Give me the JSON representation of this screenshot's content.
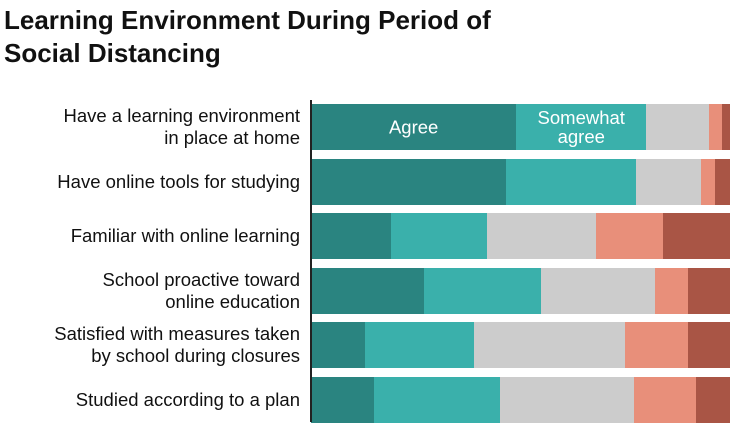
{
  "chart_data": {
    "type": "stacked_bar_horizontal",
    "title": "Learning Environment During Period of\nSocial Distancing",
    "categories": [
      "Have a learning environment\nin place at home",
      "Have online tools for studying",
      "Familiar with online learning",
      "School proactive toward\nonline education",
      "Satisfied with measures taken\nby school during closures",
      "Studied according to a plan"
    ],
    "xlim": [
      0,
      100
    ],
    "series": [
      {
        "name": "Agree",
        "color": "#2a8480",
        "values": [
          49,
          46.5,
          19,
          27,
          13,
          15
        ]
      },
      {
        "name": "Somewhat\nagree",
        "color": "#3ab0ab",
        "values": [
          31,
          31,
          23,
          28,
          26,
          30
        ]
      },
      {
        "color": "#cccccc",
        "values": [
          15,
          15.5,
          26,
          27,
          36,
          32
        ]
      },
      {
        "color": "#e88f7a",
        "values": [
          3,
          3.5,
          16,
          8,
          15,
          15
        ]
      },
      {
        "color": "#a95545",
        "values": [
          2,
          3.5,
          16,
          10,
          10,
          8
        ]
      }
    ]
  }
}
